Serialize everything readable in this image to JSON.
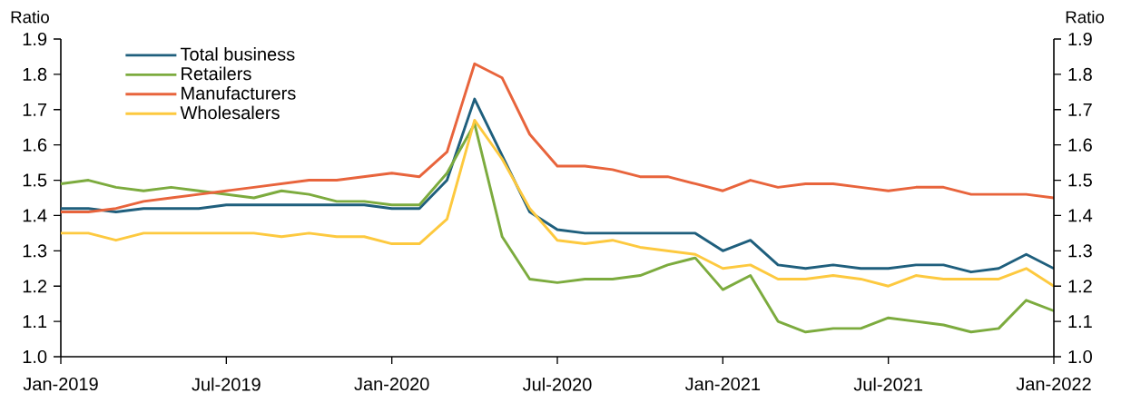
{
  "chart_data": {
    "type": "line",
    "ylabel": "Ratio",
    "y2label": "Ratio",
    "x": [
      "2019-01",
      "2019-02",
      "2019-03",
      "2019-04",
      "2019-05",
      "2019-06",
      "2019-07",
      "2019-08",
      "2019-09",
      "2019-10",
      "2019-11",
      "2019-12",
      "2020-01",
      "2020-02",
      "2020-03",
      "2020-04",
      "2020-05",
      "2020-06",
      "2020-07",
      "2020-08",
      "2020-09",
      "2020-10",
      "2020-11",
      "2020-12",
      "2021-01",
      "2021-02",
      "2021-03",
      "2021-04",
      "2021-05",
      "2021-06",
      "2021-07",
      "2021-08",
      "2021-09",
      "2021-10",
      "2021-11",
      "2021-12",
      "2022-01"
    ],
    "series": [
      {
        "name": "Total business",
        "color": "#1f5f7d",
        "values": [
          1.42,
          1.42,
          1.41,
          1.42,
          1.42,
          1.42,
          1.43,
          1.43,
          1.43,
          1.43,
          1.43,
          1.43,
          1.42,
          1.42,
          1.5,
          1.73,
          1.57,
          1.41,
          1.36,
          1.35,
          1.35,
          1.35,
          1.35,
          1.35,
          1.3,
          1.33,
          1.26,
          1.25,
          1.26,
          1.25,
          1.25,
          1.26,
          1.26,
          1.24,
          1.25,
          1.29,
          1.25
        ]
      },
      {
        "name": "Retailers",
        "color": "#7cab3e",
        "values": [
          1.49,
          1.5,
          1.48,
          1.47,
          1.48,
          1.47,
          1.46,
          1.45,
          1.47,
          1.46,
          1.44,
          1.44,
          1.43,
          1.43,
          1.52,
          1.66,
          1.34,
          1.22,
          1.21,
          1.22,
          1.22,
          1.23,
          1.26,
          1.28,
          1.19,
          1.23,
          1.1,
          1.07,
          1.08,
          1.08,
          1.11,
          1.1,
          1.09,
          1.07,
          1.08,
          1.16,
          1.13
        ]
      },
      {
        "name": "Manufacturers",
        "color": "#e8643c",
        "values": [
          1.41,
          1.41,
          1.42,
          1.44,
          1.45,
          1.46,
          1.47,
          1.48,
          1.49,
          1.5,
          1.5,
          1.51,
          1.52,
          1.51,
          1.58,
          1.83,
          1.79,
          1.63,
          1.54,
          1.54,
          1.53,
          1.51,
          1.51,
          1.49,
          1.47,
          1.5,
          1.48,
          1.49,
          1.49,
          1.48,
          1.47,
          1.48,
          1.48,
          1.46,
          1.46,
          1.46,
          1.45
        ]
      },
      {
        "name": "Wholesalers",
        "color": "#fdc93f",
        "values": [
          1.35,
          1.35,
          1.33,
          1.35,
          1.35,
          1.35,
          1.35,
          1.35,
          1.34,
          1.35,
          1.34,
          1.34,
          1.32,
          1.32,
          1.39,
          1.67,
          1.56,
          1.42,
          1.33,
          1.32,
          1.33,
          1.31,
          1.3,
          1.29,
          1.25,
          1.26,
          1.22,
          1.22,
          1.23,
          1.22,
          1.2,
          1.23,
          1.22,
          1.22,
          1.22,
          1.25,
          1.2
        ]
      }
    ],
    "xlim": [
      "2019-01",
      "2022-01"
    ],
    "xticks": [
      {
        "value": "2019-01",
        "label": "Jan-2019"
      },
      {
        "value": "2019-07",
        "label": "Jul-2019"
      },
      {
        "value": "2020-01",
        "label": "Jan-2020"
      },
      {
        "value": "2020-07",
        "label": "Jul-2020"
      },
      {
        "value": "2021-01",
        "label": "Jan-2021"
      },
      {
        "value": "2021-07",
        "label": "Jul-2021"
      },
      {
        "value": "2022-01",
        "label": "Jan-2022"
      }
    ],
    "ylim": [
      1.0,
      1.9
    ],
    "yticks": [
      {
        "value": 1.0,
        "label": "1.0"
      },
      1.1,
      1.2,
      1.3,
      1.4,
      1.5,
      1.6,
      1.7,
      1.8,
      1.9
    ],
    "y2lim": [
      1.0,
      1.9
    ],
    "y2ticks": [
      {
        "value": 1.0,
        "label": "1.0"
      },
      1.1,
      1.2,
      1.3,
      1.4,
      1.5,
      1.6,
      1.7,
      1.8,
      1.9
    ],
    "legend": "top left"
  }
}
